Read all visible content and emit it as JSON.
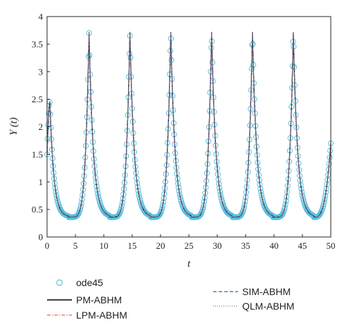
{
  "chart_data": {
    "type": "line",
    "title": "",
    "xlabel": "t",
    "ylabel": "Y (t)",
    "xlim": [
      0,
      50
    ],
    "ylim": [
      0,
      4
    ],
    "xticks": [
      0,
      5,
      10,
      15,
      20,
      25,
      30,
      35,
      40,
      45,
      50
    ],
    "yticks": [
      0,
      0.5,
      1,
      1.5,
      2,
      2.5,
      3,
      3.5,
      4
    ],
    "grid": false,
    "legend_position": "bottom",
    "peaks": {
      "t": [
        0.5,
        7.4,
        14.6,
        21.8,
        29.0,
        36.2,
        43.4
      ],
      "Y": [
        2.45,
        3.72,
        3.72,
        3.72,
        3.72,
        3.72,
        3.72
      ]
    },
    "troughs": {
      "t": [
        3.8,
        11.0,
        18.2,
        25.4,
        32.6,
        39.8,
        47.0
      ],
      "Y": [
        0.36,
        0.36,
        0.36,
        0.36,
        0.36,
        0.36,
        0.36
      ]
    },
    "initial_value": {
      "t": 0,
      "Y": 1.5
    },
    "final_value": {
      "t": 50,
      "Y": 1.7
    },
    "series": [
      {
        "name": "ode45",
        "style": "circle-markers",
        "color": "#5bc0de"
      },
      {
        "name": "PM-ABHM",
        "style": "solid",
        "color": "#000000"
      },
      {
        "name": "LPM-ABHM",
        "style": "dash-dot",
        "color": "#e8674a"
      },
      {
        "name": "SIM-ABHM",
        "style": "dashed",
        "color": "#3a5fb0"
      },
      {
        "name": "QLM-ABHM",
        "style": "dotted",
        "color": "#777777"
      }
    ]
  }
}
